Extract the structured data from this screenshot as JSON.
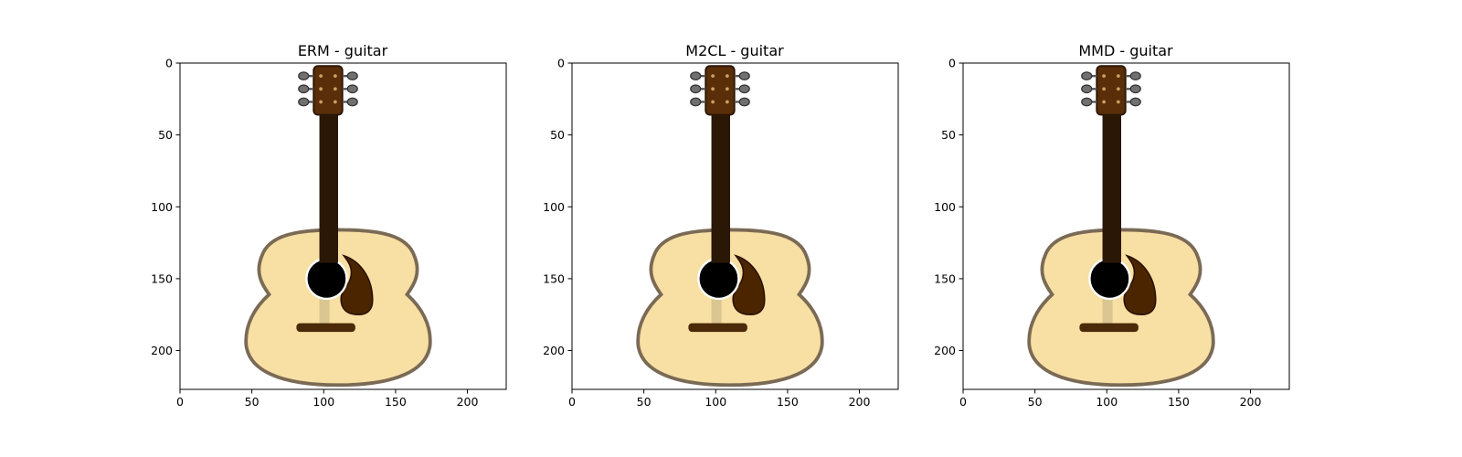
{
  "figure": {
    "panels": [
      {
        "title": "ERM - guitar"
      },
      {
        "title": "M2CL - guitar"
      },
      {
        "title": "MMD - guitar"
      }
    ],
    "x_ticks": [
      "0",
      "50",
      "100",
      "150",
      "200"
    ],
    "y_ticks": [
      "0",
      "50",
      "100",
      "150",
      "200"
    ],
    "image_extent": [
      0,
      227
    ],
    "image_subject": "acoustic-guitar",
    "colors": {
      "body_fill": "#f8dfa3",
      "body_outline": "#7a6a55",
      "neck": "#2a1706",
      "headstock": "#5a2e08",
      "pickguard": "#4a2500",
      "bridge": "#4a2a08",
      "soundhole": "#000000",
      "tuners": "#707070",
      "strings_band": "#d9c690"
    }
  }
}
